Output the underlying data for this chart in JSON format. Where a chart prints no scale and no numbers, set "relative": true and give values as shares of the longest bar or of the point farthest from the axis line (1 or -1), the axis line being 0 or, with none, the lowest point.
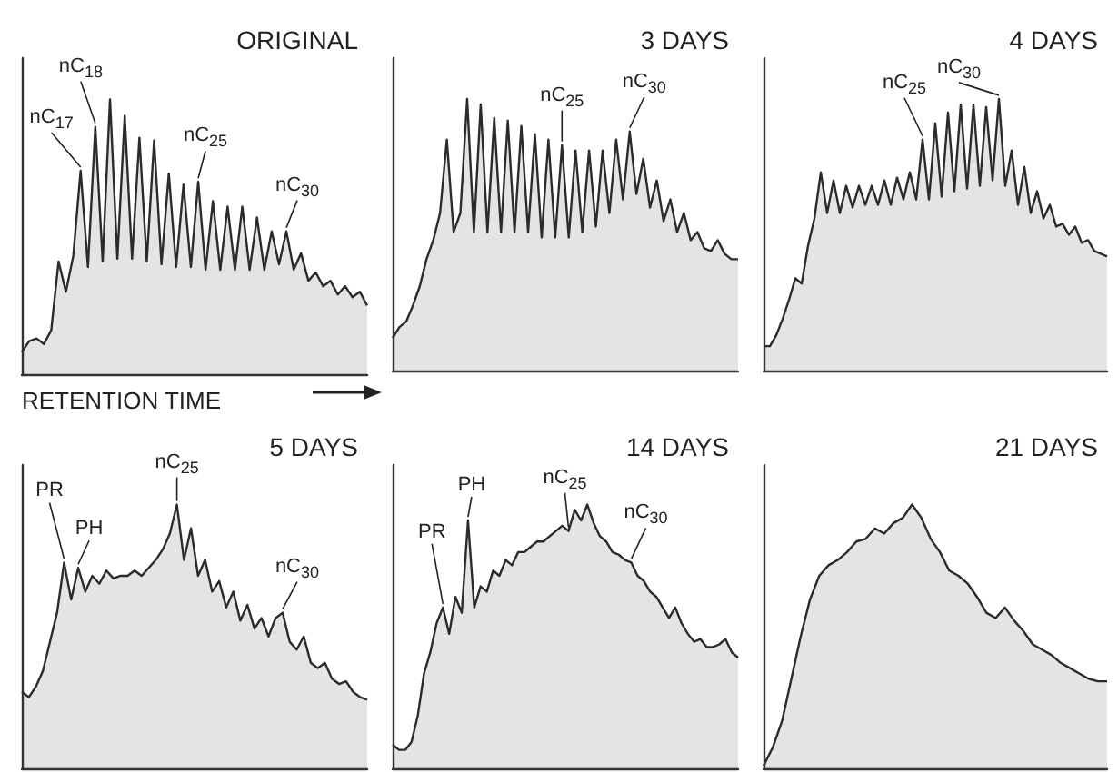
{
  "chart_data": [
    {
      "type": "area",
      "title": "ORIGINAL",
      "xlabel": "RETENTION TIME",
      "relative": true,
      "tick_labels": false,
      "grid": false,
      "categories": [
        null,
        null,
        null,
        null,
        null,
        null,
        null,
        null,
        null,
        null,
        null,
        null,
        null,
        null,
        null,
        null,
        null,
        null,
        null,
        null,
        null,
        null,
        null,
        null,
        null,
        null,
        null,
        null,
        null,
        null,
        null,
        null,
        null,
        null,
        null,
        null,
        null,
        null,
        null,
        null,
        null,
        null,
        null,
        null,
        null,
        null,
        null,
        null
      ],
      "series": [
        {
          "color": "#2b2b2b",
          "values": [
            0.08,
            0.12,
            0.13,
            0.11,
            0.16,
            0.41,
            0.3,
            0.43,
            0.74,
            0.39,
            0.9,
            0.41,
            1.0,
            0.42,
            0.94,
            0.42,
            0.86,
            0.41,
            0.85,
            0.4,
            0.73,
            0.39,
            0.69,
            0.39,
            0.7,
            0.38,
            0.63,
            0.38,
            0.61,
            0.38,
            0.61,
            0.38,
            0.57,
            0.38,
            0.52,
            0.4,
            0.52,
            0.38,
            0.44,
            0.34,
            0.37,
            0.32,
            0.34,
            0.29,
            0.32,
            0.28,
            0.3,
            0.25
          ]
        }
      ],
      "annotations": [
        "nC$_{17}$",
        "nC$_{18}$",
        "nC$_{25}$",
        "nC$_{30}$"
      ]
    },
    {
      "type": "area",
      "title": "3 DAYS",
      "relative": true,
      "tick_labels": false,
      "grid": false,
      "categories": [
        null,
        null,
        null,
        null,
        null,
        null,
        null,
        null,
        null,
        null,
        null,
        null,
        null,
        null,
        null,
        null,
        null,
        null,
        null,
        null,
        null,
        null,
        null,
        null,
        null,
        null,
        null,
        null,
        null,
        null,
        null,
        null,
        null,
        null,
        null,
        null,
        null,
        null,
        null,
        null,
        null,
        null,
        null,
        null,
        null,
        null,
        null,
        null,
        null,
        null,
        null,
        null
      ],
      "series": [
        {
          "color": "#2b2b2b",
          "values": [
            0.12,
            0.16,
            0.18,
            0.24,
            0.31,
            0.41,
            0.48,
            0.58,
            0.85,
            0.51,
            0.58,
            1.0,
            0.51,
            0.98,
            0.51,
            0.93,
            0.51,
            0.92,
            0.51,
            0.9,
            0.51,
            0.87,
            0.49,
            0.85,
            0.49,
            0.83,
            0.49,
            0.81,
            0.51,
            0.81,
            0.53,
            0.81,
            0.58,
            0.85,
            0.63,
            0.88,
            0.65,
            0.78,
            0.6,
            0.7,
            0.55,
            0.63,
            0.51,
            0.58,
            0.48,
            0.51,
            0.45,
            0.44,
            0.48,
            0.43,
            0.41,
            0.41
          ]
        }
      ],
      "annotations": [
        "nC$_{25}$",
        "nC$_{30}$"
      ]
    },
    {
      "type": "area",
      "title": "4 DAYS",
      "relative": true,
      "tick_labels": false,
      "grid": false,
      "categories": [
        null,
        null,
        null,
        null,
        null,
        null,
        null,
        null,
        null,
        null,
        null,
        null,
        null,
        null,
        null,
        null,
        null,
        null,
        null,
        null,
        null,
        null,
        null,
        null,
        null,
        null,
        null,
        null,
        null,
        null,
        null,
        null,
        null,
        null,
        null,
        null,
        null,
        null,
        null,
        null,
        null,
        null,
        null,
        null,
        null,
        null,
        null,
        null,
        null,
        null,
        null,
        null,
        null,
        null,
        null
      ],
      "series": [
        {
          "color": "#2b2b2b",
          "values": [
            0.09,
            0.09,
            0.13,
            0.19,
            0.26,
            0.34,
            0.32,
            0.46,
            0.56,
            0.73,
            0.58,
            0.7,
            0.58,
            0.68,
            0.6,
            0.68,
            0.61,
            0.68,
            0.61,
            0.7,
            0.61,
            0.71,
            0.63,
            0.73,
            0.63,
            0.85,
            0.63,
            0.91,
            0.64,
            0.95,
            0.66,
            0.98,
            0.67,
            0.98,
            0.68,
            0.97,
            0.7,
            1.0,
            0.68,
            0.81,
            0.61,
            0.75,
            0.58,
            0.66,
            0.56,
            0.61,
            0.53,
            0.54,
            0.5,
            0.53,
            0.47,
            0.48,
            0.44,
            0.43,
            0.42
          ]
        }
      ],
      "annotations": [
        "nC$_{25}$",
        "nC$_{30}$"
      ]
    },
    {
      "type": "area",
      "title": "5 DAYS",
      "relative": true,
      "tick_labels": false,
      "grid": false,
      "categories": [
        null,
        null,
        null,
        null,
        null,
        null,
        null,
        null,
        null,
        null,
        null,
        null,
        null,
        null,
        null,
        null,
        null,
        null,
        null,
        null,
        null,
        null,
        null,
        null,
        null,
        null,
        null,
        null,
        null,
        null,
        null,
        null,
        null,
        null,
        null,
        null,
        null,
        null,
        null,
        null,
        null,
        null,
        null,
        null,
        null,
        null,
        null,
        null,
        null,
        null
      ],
      "series": [
        {
          "color": "#2b2b2b",
          "values": [
            0.29,
            0.27,
            0.31,
            0.37,
            0.48,
            0.59,
            0.78,
            0.64,
            0.76,
            0.67,
            0.73,
            0.7,
            0.75,
            0.72,
            0.73,
            0.73,
            0.75,
            0.73,
            0.76,
            0.79,
            0.83,
            0.89,
            1.0,
            0.79,
            0.91,
            0.73,
            0.79,
            0.67,
            0.71,
            0.61,
            0.67,
            0.56,
            0.62,
            0.53,
            0.57,
            0.5,
            0.57,
            0.59,
            0.48,
            0.45,
            0.5,
            0.4,
            0.38,
            0.4,
            0.34,
            0.32,
            0.33,
            0.29,
            0.27,
            0.26
          ]
        }
      ],
      "annotations": [
        "PR",
        "PH",
        "nC$_{25}$",
        "nC$_{30}$"
      ]
    },
    {
      "type": "area",
      "title": "14 DAYS",
      "relative": true,
      "tick_labels": false,
      "grid": false,
      "categories": [
        null,
        null,
        null,
        null,
        null,
        null,
        null,
        null,
        null,
        null,
        null,
        null,
        null,
        null,
        null,
        null,
        null,
        null,
        null,
        null,
        null,
        null,
        null,
        null,
        null,
        null,
        null,
        null,
        null,
        null,
        null,
        null,
        null,
        null,
        null,
        null,
        null,
        null,
        null,
        null,
        null,
        null,
        null,
        null,
        null,
        null,
        null,
        null,
        null,
        null,
        null,
        null,
        null,
        null,
        null,
        null
      ],
      "series": [
        {
          "color": "#2b2b2b",
          "values": [
            0.09,
            0.07,
            0.07,
            0.1,
            0.2,
            0.36,
            0.44,
            0.55,
            0.61,
            0.51,
            0.65,
            0.59,
            0.94,
            0.61,
            0.69,
            0.67,
            0.75,
            0.73,
            0.79,
            0.77,
            0.82,
            0.82,
            0.84,
            0.86,
            0.86,
            0.88,
            0.9,
            0.92,
            0.9,
            0.98,
            0.94,
            1.0,
            0.93,
            0.88,
            0.86,
            0.82,
            0.81,
            0.79,
            0.78,
            0.73,
            0.71,
            0.67,
            0.65,
            0.61,
            0.57,
            0.61,
            0.55,
            0.51,
            0.48,
            0.49,
            0.46,
            0.46,
            0.47,
            0.49,
            0.44,
            0.42
          ]
        }
      ],
      "annotations": [
        "PR",
        "PH",
        "nC$_{25}$",
        "nC$_{30}$"
      ]
    },
    {
      "type": "area",
      "title": "21 DAYS",
      "relative": true,
      "tick_labels": false,
      "grid": false,
      "categories": [
        null,
        null,
        null,
        null,
        null,
        null,
        null,
        null,
        null,
        null,
        null,
        null,
        null,
        null,
        null,
        null,
        null,
        null,
        null,
        null,
        null,
        null,
        null,
        null,
        null,
        null,
        null,
        null,
        null,
        null,
        null,
        null,
        null,
        null,
        null,
        null,
        null,
        null
      ],
      "series": [
        {
          "color": "#2b2b2b",
          "values": [
            0.01,
            0.08,
            0.18,
            0.34,
            0.5,
            0.64,
            0.73,
            0.77,
            0.79,
            0.82,
            0.86,
            0.87,
            0.91,
            0.89,
            0.93,
            0.95,
            1.0,
            0.95,
            0.87,
            0.82,
            0.75,
            0.73,
            0.7,
            0.65,
            0.59,
            0.57,
            0.61,
            0.56,
            0.52,
            0.47,
            0.45,
            0.43,
            0.4,
            0.38,
            0.36,
            0.34,
            0.33,
            0.33
          ]
        }
      ]
    }
  ]
}
